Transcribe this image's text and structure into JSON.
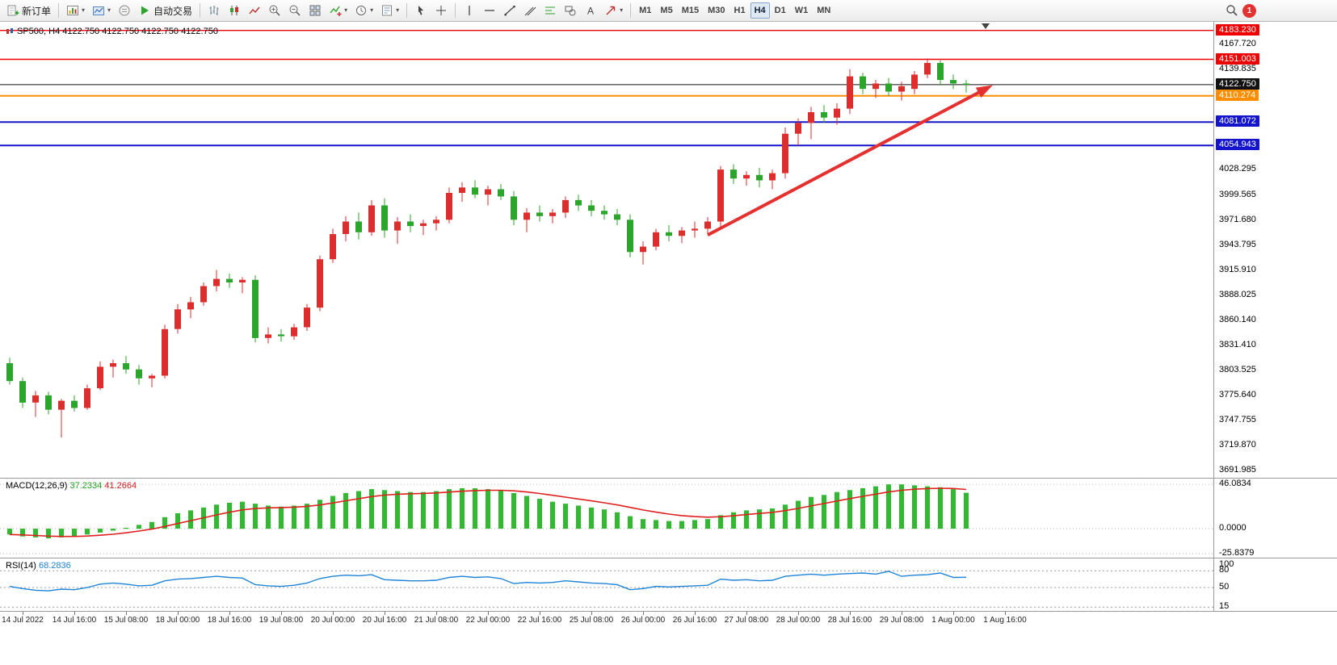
{
  "toolbar": {
    "new_order": "新订单",
    "autotrading": "自动交易",
    "timeframes": [
      "M1",
      "M5",
      "M15",
      "M30",
      "H1",
      "H4",
      "D1",
      "W1",
      "MN"
    ],
    "active_timeframe": "H4",
    "badge_count": "1"
  },
  "chart": {
    "symbol_label": "SP500, H4  4122.750 4122.750 4122.750 4122.750",
    "ylim": [
      3685,
      4192
    ],
    "colors": {
      "up": "#dd2e2e",
      "down": "#2ca52c",
      "arrow": "#e53030",
      "current": "#111111"
    },
    "levels": [
      {
        "p": 4183.23,
        "t": "4183.230",
        "c": "#ee0000",
        "w": 1.4
      },
      {
        "p": 4151.003,
        "t": "4151.003",
        "c": "#ee0000",
        "w": 1.4
      },
      {
        "p": 4122.75,
        "t": "4122.750",
        "c": "#111111",
        "w": 1
      },
      {
        "p": 4110.274,
        "t": "4110.274",
        "c": "#ff8d00",
        "w": 2
      },
      {
        "p": 4081.072,
        "t": "4081.072",
        "c": "#1414cc",
        "w": 2
      },
      {
        "p": 4054.943,
        "t": "4054.943",
        "c": "#1414cc",
        "w": 2
      }
    ],
    "ticks": [
      {
        "p": 4167.72,
        "t": "4167.720"
      },
      {
        "p": 4139.835,
        "t": "4139.835"
      },
      {
        "p": 4028.295,
        "t": "4028.295"
      },
      {
        "p": 3999.565,
        "t": "3999.565"
      },
      {
        "p": 3971.68,
        "t": "3971.680"
      },
      {
        "p": 3943.795,
        "t": "3943.795"
      },
      {
        "p": 3915.91,
        "t": "3915.910"
      },
      {
        "p": 3888.025,
        "t": "3888.025"
      },
      {
        "p": 3860.14,
        "t": "3860.140"
      },
      {
        "p": 3831.41,
        "t": "3831.410"
      },
      {
        "p": 3803.525,
        "t": "3803.525"
      },
      {
        "p": 3775.64,
        "t": "3775.640"
      },
      {
        "p": 3747.755,
        "t": "3747.755"
      },
      {
        "p": 3719.87,
        "t": "3719.870"
      },
      {
        "p": 3691.985,
        "t": "3691.985"
      }
    ],
    "candles": [
      [
        3812,
        3818,
        3788,
        3792
      ],
      [
        3792,
        3796,
        3762,
        3768
      ],
      [
        3768,
        3781,
        3752,
        3776
      ],
      [
        3776,
        3780,
        3755,
        3760
      ],
      [
        3760,
        3772,
        3729,
        3770
      ],
      [
        3770,
        3776,
        3758,
        3762
      ],
      [
        3762,
        3788,
        3760,
        3784
      ],
      [
        3784,
        3814,
        3782,
        3808
      ],
      [
        3808,
        3816,
        3796,
        3812
      ],
      [
        3812,
        3820,
        3800,
        3805
      ],
      [
        3805,
        3810,
        3788,
        3795
      ],
      [
        3795,
        3800,
        3785,
        3798
      ],
      [
        3798,
        3855,
        3795,
        3850
      ],
      [
        3850,
        3878,
        3845,
        3872
      ],
      [
        3872,
        3886,
        3862,
        3880
      ],
      [
        3880,
        3902,
        3876,
        3898
      ],
      [
        3898,
        3916,
        3892,
        3906
      ],
      [
        3906,
        3912,
        3896,
        3902
      ],
      [
        3902,
        3908,
        3890,
        3905
      ],
      [
        3905,
        3910,
        3835,
        3840
      ],
      [
        3840,
        3852,
        3834,
        3844
      ],
      [
        3844,
        3850,
        3836,
        3842
      ],
      [
        3842,
        3856,
        3838,
        3852
      ],
      [
        3852,
        3878,
        3848,
        3874
      ],
      [
        3874,
        3932,
        3870,
        3928
      ],
      [
        3928,
        3962,
        3924,
        3956
      ],
      [
        3956,
        3976,
        3948,
        3970
      ],
      [
        3970,
        3980,
        3950,
        3958
      ],
      [
        3958,
        3994,
        3954,
        3988
      ],
      [
        3988,
        3996,
        3952,
        3960
      ],
      [
        3960,
        3975,
        3945,
        3970
      ],
      [
        3970,
        3978,
        3958,
        3965
      ],
      [
        3965,
        3972,
        3955,
        3968
      ],
      [
        3968,
        3976,
        3960,
        3972
      ],
      [
        3972,
        4008,
        3968,
        4002
      ],
      [
        4002,
        4014,
        3992,
        4008
      ],
      [
        4008,
        4016,
        3996,
        4000
      ],
      [
        4000,
        4010,
        3988,
        4006
      ],
      [
        4006,
        4012,
        3994,
        3998
      ],
      [
        3998,
        4004,
        3966,
        3972
      ],
      [
        3972,
        3985,
        3958,
        3980
      ],
      [
        3980,
        3988,
        3970,
        3976
      ],
      [
        3976,
        3984,
        3968,
        3980
      ],
      [
        3980,
        3998,
        3974,
        3994
      ],
      [
        3994,
        4000,
        3982,
        3988
      ],
      [
        3988,
        3994,
        3976,
        3982
      ],
      [
        3982,
        3988,
        3972,
        3978
      ],
      [
        3978,
        3984,
        3966,
        3972
      ],
      [
        3972,
        3978,
        3930,
        3936
      ],
      [
        3936,
        3948,
        3922,
        3942
      ],
      [
        3942,
        3962,
        3938,
        3958
      ],
      [
        3958,
        3966,
        3948,
        3954
      ],
      [
        3954,
        3964,
        3946,
        3960
      ],
      [
        3960,
        3970,
        3952,
        3962
      ],
      [
        3962,
        3975,
        3956,
        3970
      ],
      [
        3970,
        4032,
        3964,
        4028
      ],
      [
        4028,
        4034,
        4012,
        4018
      ],
      [
        4018,
        4026,
        4010,
        4022
      ],
      [
        4022,
        4030,
        4008,
        4016
      ],
      [
        4016,
        4028,
        4006,
        4024
      ],
      [
        4024,
        4075,
        4018,
        4068
      ],
      [
        4068,
        4085,
        4055,
        4080
      ],
      [
        4080,
        4098,
        4062,
        4092
      ],
      [
        4092,
        4100,
        4080,
        4086
      ],
      [
        4086,
        4102,
        4078,
        4096
      ],
      [
        4096,
        4140,
        4090,
        4132
      ],
      [
        4132,
        4136,
        4112,
        4118
      ],
      [
        4118,
        4128,
        4108,
        4124
      ],
      [
        4124,
        4130,
        4110,
        4115
      ],
      [
        4115,
        4126,
        4105,
        4121
      ],
      [
        4118,
        4138,
        4112,
        4134
      ],
      [
        4134,
        4152,
        4130,
        4147
      ],
      [
        4147,
        4150,
        4122,
        4128
      ],
      [
        4128,
        4134,
        4118,
        4124
      ],
      [
        4124,
        4128,
        4114,
        4122.75
      ]
    ],
    "trend_arrow": {
      "from_bar": 54,
      "from_price": 3955,
      "to_bar": 75.5,
      "to_price": 4118
    },
    "shift_marker_bar": 75.5
  },
  "macd": {
    "name": "MACD(12,26,9)",
    "main_value": "37.2334",
    "signal_value": "41.2664",
    "ylim": [
      -30,
      52
    ],
    "colors": {
      "histogram": "#2fba2f",
      "signal": "#e02020"
    },
    "axis": [
      {
        "v": 46.0834,
        "t": "46.0834"
      },
      {
        "v": 0,
        "t": "0.0000"
      },
      {
        "v": -25.8379,
        "t": "-25.8379"
      }
    ],
    "histogram": [
      -6,
      -8,
      -9,
      -10,
      -9,
      -8,
      -6,
      -4,
      -2,
      1,
      4,
      7,
      12,
      16,
      19,
      22,
      25,
      27,
      28,
      26,
      24,
      23,
      24,
      26,
      30,
      34,
      37,
      39,
      41,
      40,
      39,
      38,
      38,
      39,
      41,
      42,
      42,
      41,
      40,
      37,
      34,
      31,
      28,
      26,
      24,
      22,
      20,
      17,
      13,
      10,
      9,
      8,
      8,
      9,
      10,
      14,
      17,
      19,
      20,
      21,
      25,
      29,
      33,
      35,
      38,
      40,
      42,
      44,
      46,
      46,
      45,
      44,
      43,
      41,
      37.2334
    ]
  },
  "rsi": {
    "name": "RSI(14)",
    "value": "68.2836",
    "color": "#1f83d6",
    "ylim": [
      8,
      102
    ],
    "axis": [
      {
        "v": 100,
        "t": "100"
      },
      {
        "v": 80,
        "t": "80",
        "dot": 1
      },
      {
        "v": 50,
        "t": "50",
        "dot": 1
      },
      {
        "v": 15,
        "t": "15",
        "dot": 1
      }
    ],
    "values": [
      52,
      48,
      45,
      44,
      47,
      46,
      50,
      56,
      58,
      56,
      53,
      54,
      62,
      65,
      66,
      68,
      70,
      68,
      67,
      55,
      53,
      52,
      54,
      58,
      66,
      70,
      72,
      71,
      73,
      64,
      63,
      62,
      62,
      63,
      68,
      70,
      68,
      69,
      66,
      57,
      59,
      58,
      59,
      62,
      60,
      58,
      57,
      55,
      46,
      48,
      52,
      51,
      52,
      53,
      54,
      65,
      63,
      64,
      62,
      63,
      70,
      72,
      74,
      72,
      74,
      75,
      76,
      74,
      79,
      70,
      72,
      73,
      76,
      68,
      68.2836
    ]
  },
  "time_axis": {
    "labels": [
      "14 Jul 2022",
      "14 Jul 16:00",
      "15 Jul 08:00",
      "18 Jul 00:00",
      "18 Jul 16:00",
      "19 Jul 08:00",
      "20 Jul 00:00",
      "20 Jul 16:00",
      "21 Jul 08:00",
      "22 Jul 00:00",
      "22 Jul 16:00",
      "25 Jul 08:00",
      "26 Jul 00:00",
      "26 Jul 16:00",
      "27 Jul 08:00",
      "28 Jul 00:00",
      "28 Jul 16:00",
      "29 Jul 08:00",
      "1 Aug 00:00",
      "1 Aug 16:00"
    ],
    "bars": [
      1,
      5,
      9,
      13,
      17,
      21,
      25,
      29,
      33,
      37,
      41,
      45,
      49,
      53,
      57,
      61,
      65,
      69,
      73,
      77
    ]
  }
}
